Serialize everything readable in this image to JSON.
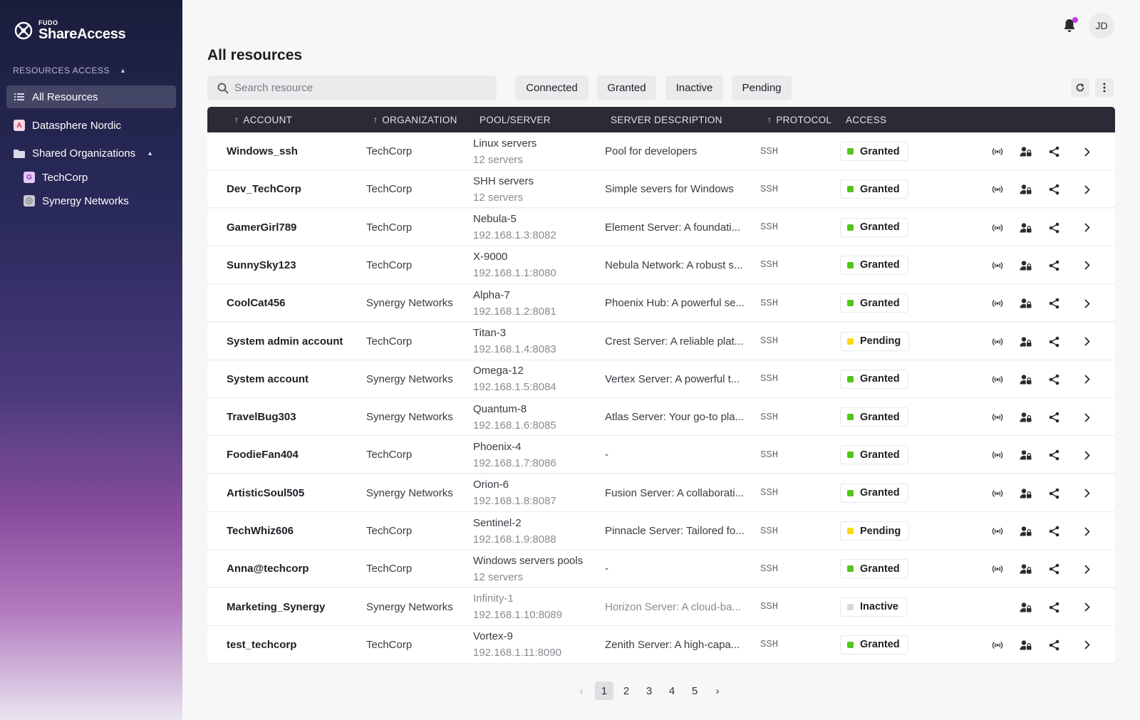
{
  "brand": {
    "small": "FUDO",
    "name": "ShareAccess"
  },
  "sidebar": {
    "section_title": "RESOURCES ACCESS",
    "items": [
      {
        "label": "All Resources",
        "active": true
      },
      {
        "label": "Datasphere Nordic",
        "badge": "A"
      },
      {
        "label": "Shared Organizations"
      }
    ],
    "sub_items": [
      {
        "label": "TechCorp",
        "badge": "G"
      },
      {
        "label": "Synergy Networks"
      }
    ]
  },
  "header": {
    "avatar_initials": "JD"
  },
  "page": {
    "title": "All resources"
  },
  "search": {
    "placeholder": "Search resource",
    "value": ""
  },
  "filters": [
    "Connected",
    "Granted",
    "Inactive",
    "Pending"
  ],
  "table": {
    "columns": [
      "ACCOUNT",
      "ORGANIZATION",
      "POOL/SERVER",
      "SERVER DESCRIPTION",
      "PROTOCOL",
      "ACCESS"
    ],
    "rows": [
      {
        "account": "Windows_ssh",
        "org": "TechCorp",
        "pool": "Linux servers",
        "pool_sub": "12 servers",
        "desc": "Pool for developers",
        "protocol": "SSH",
        "access": "Granted"
      },
      {
        "account": "Dev_TechCorp",
        "org": "TechCorp",
        "pool": "SHH servers",
        "pool_sub": "12 servers",
        "desc": "Simple severs for Windows",
        "protocol": "SSH",
        "access": "Granted"
      },
      {
        "account": "GamerGirl789",
        "org": "TechCorp",
        "pool": "Nebula-5",
        "pool_sub": "192.168.1.3:8082",
        "desc": "Element Server: A foundati...",
        "protocol": "SSH",
        "access": "Granted"
      },
      {
        "account": "SunnySky123",
        "org": "TechCorp",
        "pool": "X-9000",
        "pool_sub": "192.168.1.1:8080",
        "desc": "Nebula Network: A robust s...",
        "protocol": "SSH",
        "access": "Granted"
      },
      {
        "account": "CoolCat456",
        "org": "Synergy Networks",
        "pool": "Alpha-7",
        "pool_sub": "192.168.1.2:8081",
        "desc": "Phoenix Hub: A powerful se...",
        "protocol": "SSH",
        "access": "Granted"
      },
      {
        "account": "System admin account",
        "org": "TechCorp",
        "pool": "Titan-3",
        "pool_sub": "192.168.1.4:8083",
        "desc": "Crest Server: A reliable plat...",
        "protocol": "SSH",
        "access": "Pending"
      },
      {
        "account": "System account",
        "org": "Synergy Networks",
        "pool": "Omega-12",
        "pool_sub": "192.168.1.5:8084",
        "desc": "Vertex Server: A powerful t...",
        "protocol": "SSH",
        "access": "Granted"
      },
      {
        "account": "TravelBug303",
        "org": "Synergy Networks",
        "pool": "Quantum-8",
        "pool_sub": "192.168.1.6:8085",
        "desc": "Atlas Server: Your go-to pla...",
        "protocol": "SSH",
        "access": "Granted"
      },
      {
        "account": "FoodieFan404",
        "org": "TechCorp",
        "pool": "Phoenix-4",
        "pool_sub": "192.168.1.7:8086",
        "desc": "-",
        "protocol": "SSH",
        "access": "Granted"
      },
      {
        "account": "ArtisticSoul505",
        "org": "Synergy Networks",
        "pool": "Orion-6",
        "pool_sub": "192.168.1.8:8087",
        "desc": "Fusion Server: A collaborati...",
        "protocol": "SSH",
        "access": "Granted"
      },
      {
        "account": "TechWhiz606",
        "org": "TechCorp",
        "pool": "Sentinel-2",
        "pool_sub": "192.168.1.9:8088",
        "desc": "Pinnacle Server: Tailored fo...",
        "protocol": "SSH",
        "access": "Pending"
      },
      {
        "account": "Anna@techcorp",
        "org": "TechCorp",
        "pool": "Windows servers pools",
        "pool_sub": "12 servers",
        "desc": "-",
        "protocol": "SSH",
        "access": "Granted"
      },
      {
        "account": "Marketing_Synergy",
        "org": "Synergy Networks",
        "pool": "Infinity-1",
        "pool_sub": "192.168.1.10:8089",
        "desc": "Horizon Server: A cloud-ba...",
        "protocol": "SSH",
        "access": "Inactive"
      },
      {
        "account": "test_techcorp",
        "org": "TechCorp",
        "pool": "Vortex-9",
        "pool_sub": "192.168.1.11:8090",
        "desc": "Zenith Server: A high-capa...",
        "protocol": "SSH",
        "access": "Granted"
      }
    ]
  },
  "status_colors": {
    "Granted": "#52c41a",
    "Pending": "#fadb14",
    "Inactive": "#d9d9d9"
  },
  "pagination": {
    "pages": [
      "1",
      "2",
      "3",
      "4",
      "5"
    ],
    "current": "1",
    "prev": "‹",
    "next": "›"
  },
  "icons": [
    "list-icon",
    "folder-icon",
    "bell-icon",
    "search-icon",
    "refresh-icon",
    "more-vertical-icon",
    "broadcast-icon",
    "user-lock-icon",
    "share-icon",
    "chevron-right-icon"
  ]
}
